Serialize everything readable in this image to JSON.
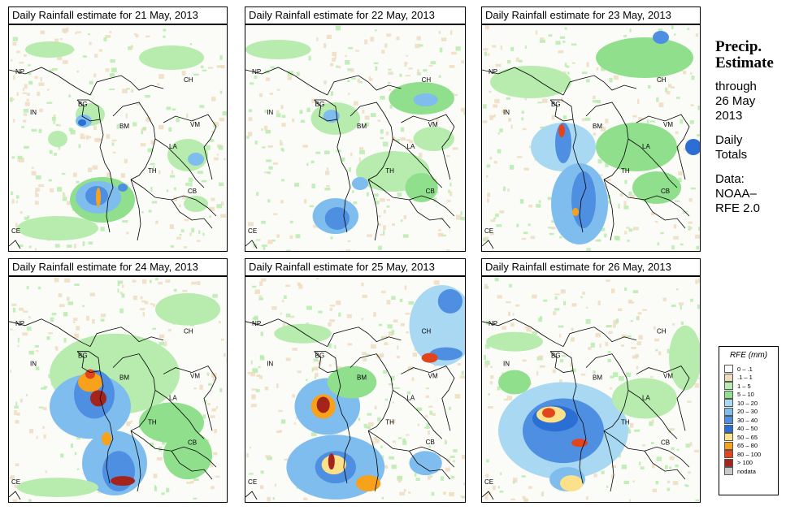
{
  "panels": [
    {
      "title": "Daily Rainfall estimate for  21 May, 2013"
    },
    {
      "title": "Daily Rainfall estimate for  22 May, 2013"
    },
    {
      "title": "Daily Rainfall estimate for  23 May, 2013"
    },
    {
      "title": "Daily Rainfall estimate for  24 May, 2013"
    },
    {
      "title": "Daily Rainfall estimate for  25 May, 2013"
    },
    {
      "title": "Daily Rainfall estimate for  26 May, 2013"
    }
  ],
  "country_labels": [
    "NP",
    "IN",
    "BG",
    "BM",
    "CH",
    "VM",
    "LA",
    "TH",
    "CB",
    "CE"
  ],
  "side": {
    "heading_1": "Precip.",
    "heading_2": "Estimate",
    "line_1": "through",
    "line_2": "26 May",
    "line_3": "2013",
    "line_4": "Daily",
    "line_5": "Totals",
    "line_6": "Data:",
    "line_7": "NOAA–",
    "line_8": "RFE 2.0"
  },
  "legend": {
    "title": "RFE (mm)",
    "items": [
      {
        "label": "0 – .1",
        "color": "#ffffff"
      },
      {
        "label": ".1 – 1",
        "color": "#eddcc0"
      },
      {
        "label": "1 – 5",
        "color": "#b7ecae"
      },
      {
        "label": "5 – 10",
        "color": "#8fdf8c"
      },
      {
        "label": "10 – 20",
        "color": "#a8d8f2"
      },
      {
        "label": "20 – 30",
        "color": "#7fbdee"
      },
      {
        "label": "30 – 40",
        "color": "#4f8fe2"
      },
      {
        "label": "40 – 50",
        "color": "#2b6ed4"
      },
      {
        "label": "50 – 65",
        "color": "#fde08a"
      },
      {
        "label": "65 – 80",
        "color": "#f7a21a"
      },
      {
        "label": "80 – 100",
        "color": "#e2451c"
      },
      {
        "label": "> 100",
        "color": "#a4231a"
      },
      {
        "label": "nodata",
        "color": "#c8c8c8"
      }
    ]
  }
}
